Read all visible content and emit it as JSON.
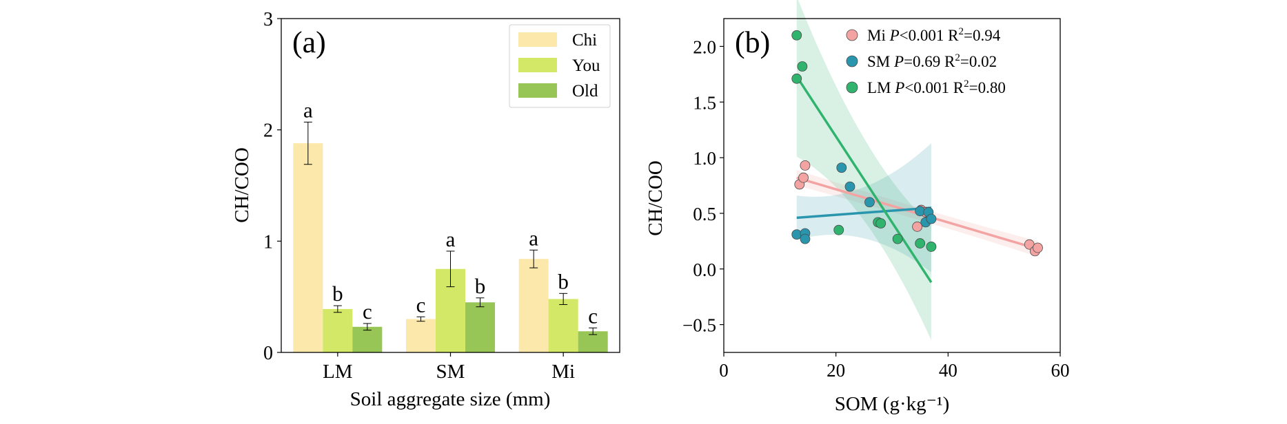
{
  "chart_data": [
    {
      "type": "bar",
      "panel_label": "(a)",
      "xlabel": "Soil aggregate size (mm)",
      "ylabel": "CH/COO",
      "ylim": [
        0,
        3
      ],
      "yticks": [
        0,
        1,
        2,
        3
      ],
      "categories": [
        "LM",
        "SM",
        "Mi"
      ],
      "legend_position": "top-right",
      "series": [
        {
          "name": "Chi",
          "color": "#fce8aa",
          "values": [
            1.88,
            0.3,
            0.84
          ],
          "errors": [
            0.19,
            0.02,
            0.08
          ],
          "letters": [
            "a",
            "c",
            "a"
          ]
        },
        {
          "name": "You",
          "color": "#d3e866",
          "values": [
            0.39,
            0.75,
            0.48
          ],
          "errors": [
            0.03,
            0.16,
            0.05
          ],
          "letters": [
            "b",
            "a",
            "b"
          ]
        },
        {
          "name": "Old",
          "color": "#97c656",
          "values": [
            0.23,
            0.45,
            0.19
          ],
          "errors": [
            0.03,
            0.04,
            0.03
          ],
          "letters": [
            "c",
            "b",
            "c"
          ]
        }
      ]
    },
    {
      "type": "scatter",
      "panel_label": "(b)",
      "xlabel": "SOM (g·kg⁻¹)",
      "ylabel": "CH/COO",
      "xlim": [
        0,
        60
      ],
      "ylim": [
        -0.75,
        2.25
      ],
      "xticks": [
        0,
        20,
        40,
        60
      ],
      "yticks": [
        -0.5,
        0.0,
        0.5,
        1.0,
        1.5,
        2.0
      ],
      "legend_position": "top-right",
      "series": [
        {
          "name": "Mi",
          "stats": "Mi P<0.001 R2=0.94",
          "color": "#f4a3a3",
          "points": [
            [
              13.5,
              0.76
            ],
            [
              14.2,
              0.82
            ],
            [
              14.5,
              0.93
            ],
            [
              34.5,
              0.38
            ],
            [
              35.2,
              0.53
            ],
            [
              36.0,
              0.51
            ],
            [
              54.5,
              0.22
            ],
            [
              55.5,
              0.16
            ],
            [
              56.0,
              0.19
            ]
          ],
          "fit": [
            [
              13.0,
              0.82
            ],
            [
              56.0,
              0.18
            ]
          ],
          "ci_half_width": [
            0.07,
            0.04,
            0.07
          ]
        },
        {
          "name": "SM",
          "stats": "SM P=0.69 R2=0.02",
          "color": "#2a96ad",
          "points": [
            [
              13.0,
              0.31
            ],
            [
              14.5,
              0.32
            ],
            [
              14.5,
              0.27
            ],
            [
              21.0,
              0.91
            ],
            [
              22.5,
              0.74
            ],
            [
              26.0,
              0.6
            ],
            [
              35.0,
              0.52
            ],
            [
              36.0,
              0.42
            ],
            [
              36.5,
              0.51
            ],
            [
              37.0,
              0.45
            ]
          ],
          "fit": [
            [
              13.0,
              0.46
            ],
            [
              37.0,
              0.55
            ]
          ],
          "ci_half_width": [
            0.2,
            0.07,
            0.58
          ]
        },
        {
          "name": "LM",
          "stats": "LM P<0.001 R2=0.80",
          "color": "#2fb36d",
          "points": [
            [
              13.0,
              2.1
            ],
            [
              13.0,
              1.71
            ],
            [
              14.0,
              1.82
            ],
            [
              20.5,
              0.35
            ],
            [
              27.5,
              0.42
            ],
            [
              28.0,
              0.41
            ],
            [
              31.0,
              0.27
            ],
            [
              35.0,
              0.23
            ],
            [
              37.0,
              0.2
            ]
          ],
          "fit": [
            [
              13.0,
              1.73
            ],
            [
              37.0,
              -0.12
            ]
          ],
          "ci_half_width": [
            0.72,
            0.12,
            0.52
          ]
        }
      ]
    }
  ]
}
